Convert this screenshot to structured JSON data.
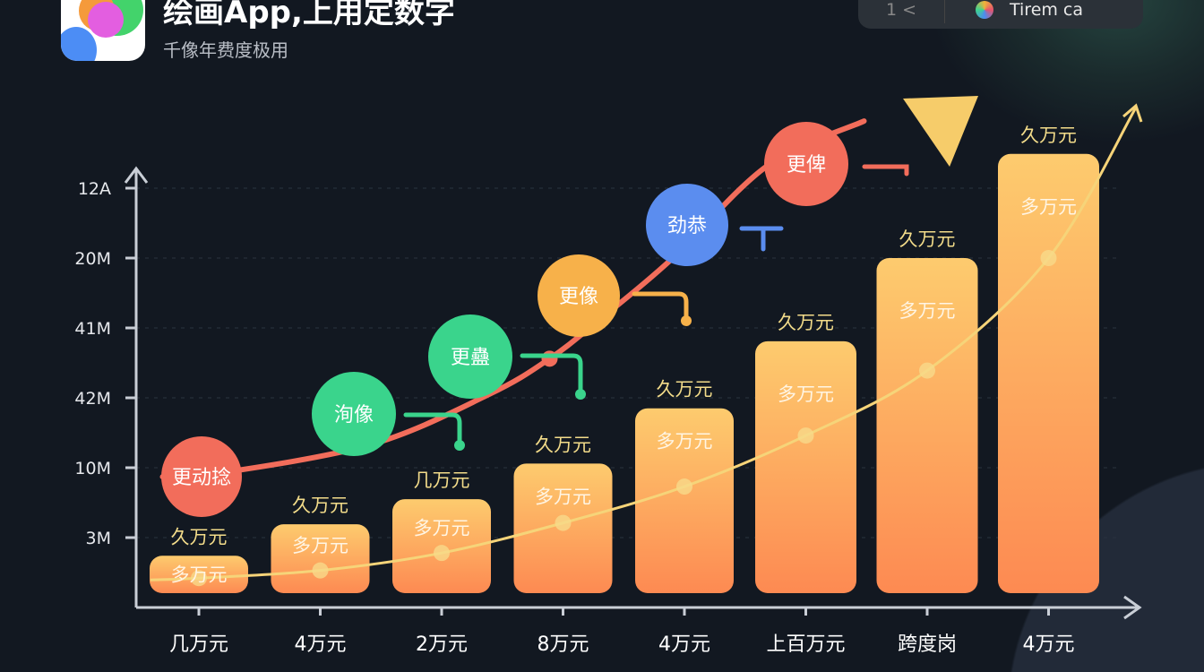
{
  "header": {
    "title": "绘画App,上用定数字",
    "subtitle": "千像年费度极用",
    "pager": "1 <",
    "account_name": "Tirem ca"
  },
  "colors": {
    "background": "#121821",
    "bar_top": "#fdcb6e",
    "bar_bottom": "#fd8a52",
    "red_line": "#f26d5b",
    "yellow_line": "#f6d479",
    "green": "#3ad48c",
    "orange": "#f7b14a",
    "blue": "#5b8def",
    "label_yellow": "#f3dc8a"
  },
  "chart_data": {
    "type": "bar",
    "title": "",
    "grid": true,
    "yticks": [
      {
        "label": "3M",
        "level": 1
      },
      {
        "label": "10M",
        "level": 2
      },
      {
        "label": "42M",
        "level": 3
      },
      {
        "label": "41M",
        "level": 4
      },
      {
        "label": "20M",
        "level": 5
      },
      {
        "label": "12A",
        "level": 6
      }
    ],
    "ylim": [
      0,
      6.5
    ],
    "categories": [
      "几万元",
      "4万元",
      "2万元",
      "8万元",
      "4万元",
      "上百万元",
      "跨度岗",
      "4万元"
    ],
    "values": [
      0.74,
      1.19,
      1.55,
      2.06,
      2.85,
      3.81,
      5.0,
      6.49
    ],
    "top_labels": [
      "久万元",
      "久万元",
      "几万元",
      "久万元",
      "久万元",
      "久万元",
      "久万元",
      "久万元"
    ],
    "inner_labels": [
      "多万元",
      "多万元",
      "多万元",
      "多万元",
      "多万元",
      "多万元",
      "多万元",
      "多万元"
    ],
    "trend_line": {
      "color": "#f6d479",
      "values": [
        0.42,
        0.53,
        0.78,
        1.21,
        1.73,
        2.46,
        3.39,
        5.0
      ]
    },
    "growth_curve": {
      "color": "#f26d5b",
      "points": [
        [
          0.2,
          1.87
        ],
        [
          0.5,
          1.88
        ],
        [
          1.9,
          2.32
        ],
        [
          2.9,
          3.05
        ],
        [
          3.4,
          3.56
        ],
        [
          3.8,
          4.1
        ],
        [
          4.4,
          4.97
        ],
        [
          5.2,
          6.32
        ],
        [
          6.0,
          6.96
        ]
      ]
    },
    "milestones": [
      {
        "label": "更动捻",
        "color": "#f26d5b"
      },
      {
        "label": "洵像",
        "color": "#3ad48c"
      },
      {
        "label": "更蠱",
        "color": "#3ad48c"
      },
      {
        "label": "更像",
        "color": "#f7b14a"
      },
      {
        "label": "劲恭",
        "color": "#5b8def"
      },
      {
        "label": "更俾",
        "color": "#f26d5b"
      }
    ]
  }
}
